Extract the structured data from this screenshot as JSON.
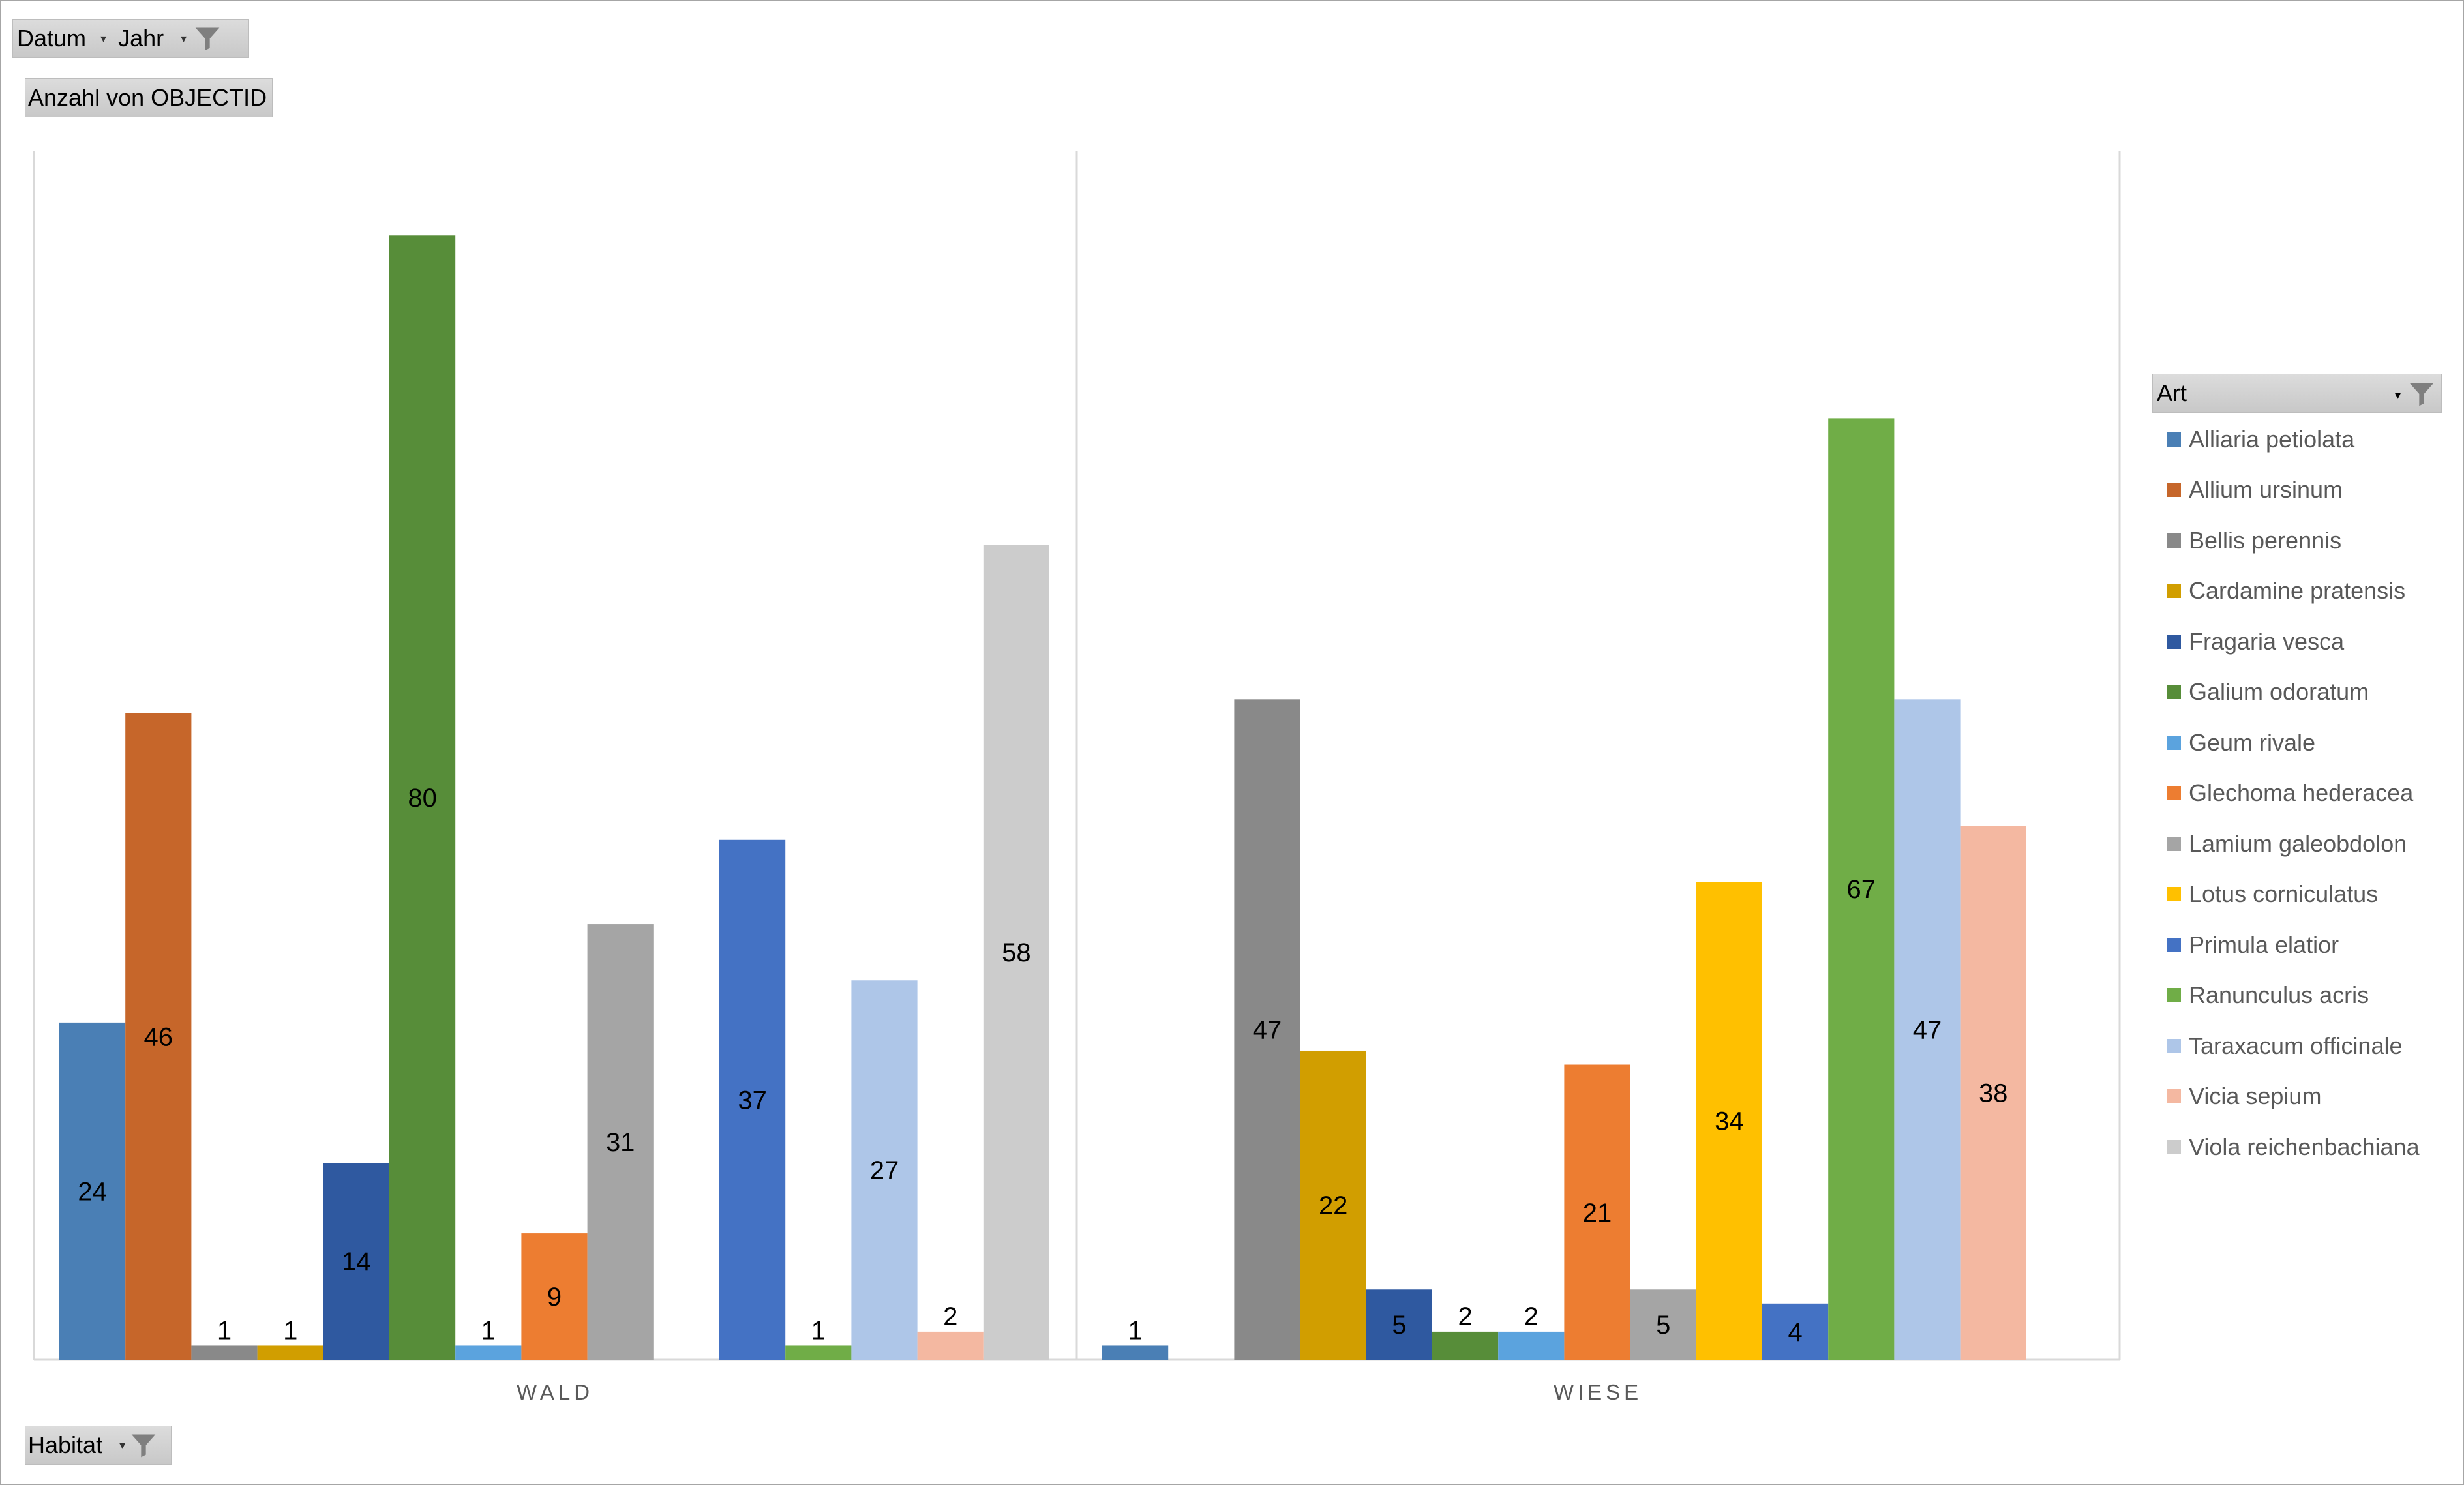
{
  "filters": {
    "datum_label": "Datum",
    "jahr_label": "Jahr",
    "value_field_label": "Anzahl von OBJECTID",
    "habitat_label": "Habitat"
  },
  "legend": {
    "title": "Art"
  },
  "chart_data": {
    "type": "bar",
    "categories": [
      "WALD",
      "WIESE"
    ],
    "ylim": [
      0,
      86
    ],
    "grid": false,
    "legend_position": "right",
    "series": [
      {
        "name": "Alliaria petiolata",
        "color": "#4a7fb5",
        "values": [
          24,
          1
        ]
      },
      {
        "name": "Allium ursinum",
        "color": "#c6662a",
        "values": [
          46,
          null
        ]
      },
      {
        "name": "Bellis perennis",
        "color": "#898989",
        "values": [
          1,
          47
        ]
      },
      {
        "name": "Cardamine pratensis",
        "color": "#d19e00",
        "values": [
          1,
          22
        ]
      },
      {
        "name": "Fragaria vesca",
        "color": "#2f59a0",
        "values": [
          14,
          5
        ]
      },
      {
        "name": "Galium odoratum",
        "color": "#578d39",
        "values": [
          80,
          2
        ]
      },
      {
        "name": "Geum rivale",
        "color": "#5ba3de",
        "values": [
          1,
          2
        ]
      },
      {
        "name": "Glechoma hederacea",
        "color": "#ed7d31",
        "values": [
          9,
          21
        ]
      },
      {
        "name": "Lamium galeobdolon",
        "color": "#a5a5a5",
        "values": [
          31,
          5
        ]
      },
      {
        "name": "Lotus corniculatus",
        "color": "#ffc000",
        "values": [
          null,
          34
        ]
      },
      {
        "name": "Primula elatior",
        "color": "#4472c4",
        "values": [
          37,
          4
        ]
      },
      {
        "name": "Ranunculus acris",
        "color": "#70ad47",
        "values": [
          1,
          67
        ]
      },
      {
        "name": "Taraxacum officinale",
        "color": "#aec6e8",
        "values": [
          27,
          47
        ]
      },
      {
        "name": "Vicia sepium",
        "color": "#f4b8a1",
        "values": [
          2,
          38
        ]
      },
      {
        "name": "Viola reichenbachiana",
        "color": "#cccccc",
        "values": [
          58,
          null
        ]
      }
    ]
  }
}
